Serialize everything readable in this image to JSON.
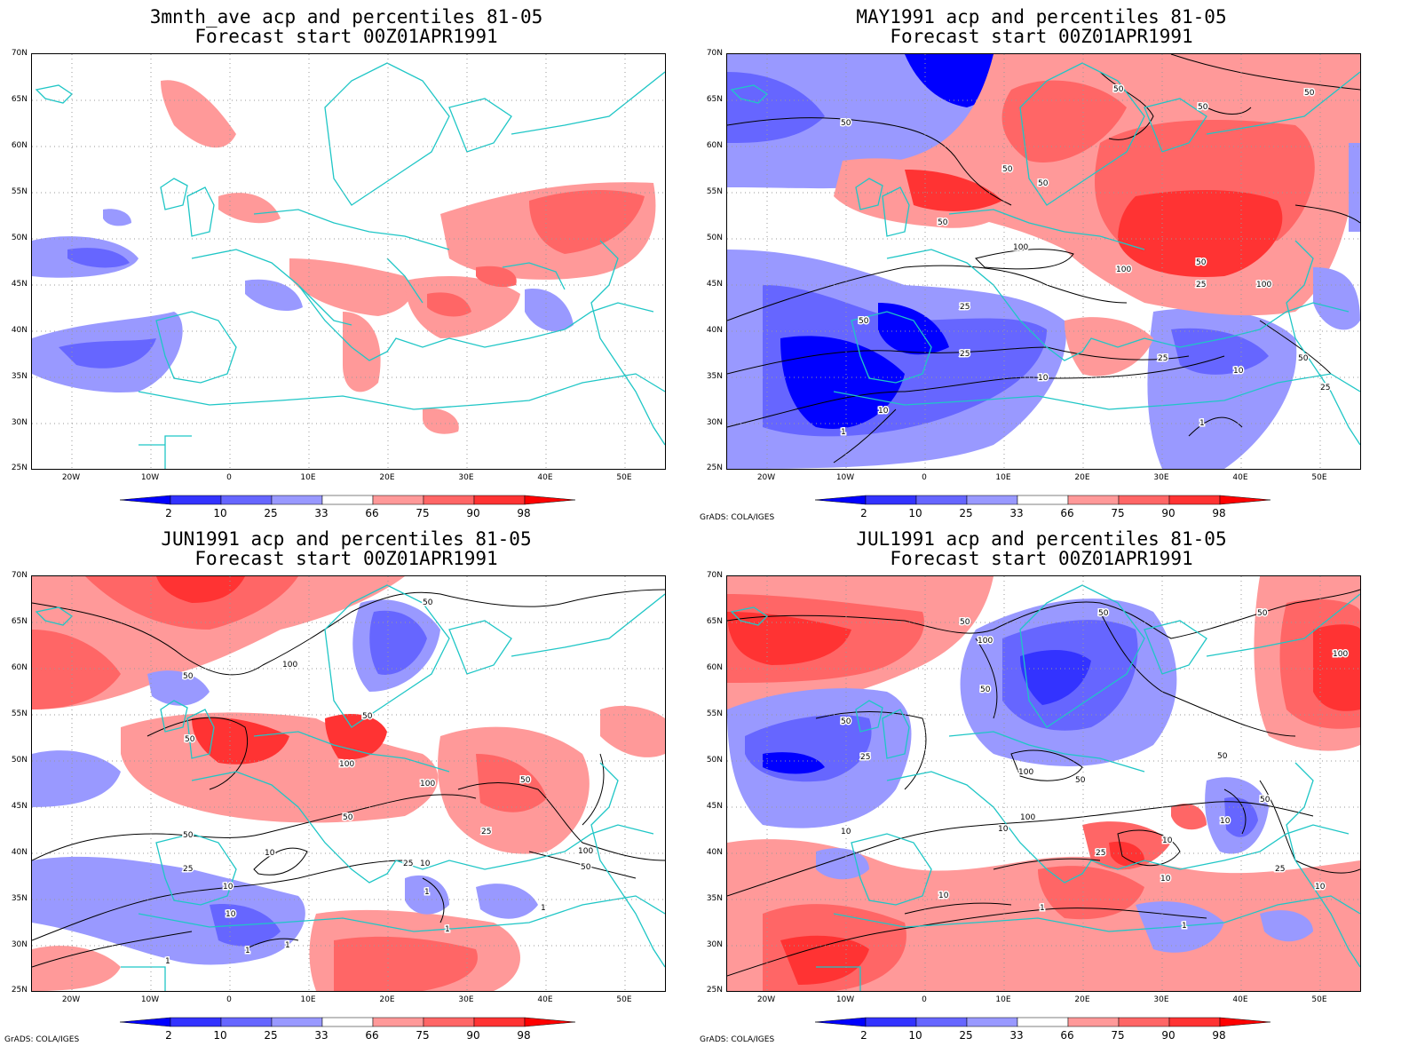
{
  "colors": {
    "coast": "#1fc6c6",
    "contour": "#000000",
    "scale": [
      "#0000ff",
      "#3333ff",
      "#6666ff",
      "#9999ff",
      "#ffffff",
      "#ff9999",
      "#ff6666",
      "#ff3333",
      "#ff0000"
    ]
  },
  "colorbar_labels": [
    "2",
    "10",
    "25",
    "33",
    "66",
    "75",
    "90",
    "98"
  ],
  "lat_labels": [
    "70N",
    "65N",
    "60N",
    "55N",
    "50N",
    "45N",
    "40N",
    "35N",
    "30N",
    "25N"
  ],
  "lon_labels": [
    "20W",
    "10W",
    "0",
    "10E",
    "20E",
    "30E",
    "40E",
    "50E"
  ],
  "credit": "GrADS: COLA/IGES",
  "panels": [
    {
      "title1": "3mnth_ave acp and percentiles 81-05",
      "title2": "Forecast start 00Z01APR1991",
      "contour_labels": []
    },
    {
      "title1": "MAY1991 acp and percentiles 81-05",
      "title2": "Forecast start 00Z01APR1991",
      "contour_labels": [
        "50",
        "50",
        "50",
        "50",
        "50",
        "50",
        "50",
        "100",
        "100",
        "100",
        "50",
        "25",
        "25",
        "25",
        "50",
        "10",
        "10",
        "10",
        "1",
        "1",
        "25",
        "50",
        "25"
      ]
    },
    {
      "title1": "JUN1991 acp and percentiles 81-05",
      "title2": "Forecast start 00Z01APR1991",
      "contour_labels": [
        "50",
        "100",
        "50",
        "50",
        "50",
        "100",
        "100",
        "50",
        "50",
        "25",
        "100",
        "50",
        "25",
        "10",
        "25",
        "10",
        "10",
        "1",
        "1",
        "1",
        "1",
        "1",
        "50",
        "10",
        "1"
      ]
    },
    {
      "title1": "JUL1991 acp and percentiles 81-05",
      "title2": "Forecast start 00Z01APR1991",
      "contour_labels": [
        "50",
        "100",
        "50",
        "50",
        "100",
        "50",
        "25",
        "50",
        "100",
        "50",
        "50",
        "10",
        "10",
        "10",
        "50",
        "25",
        "10",
        "25",
        "10",
        "10",
        "1",
        "1",
        "100",
        "10"
      ]
    }
  ]
}
